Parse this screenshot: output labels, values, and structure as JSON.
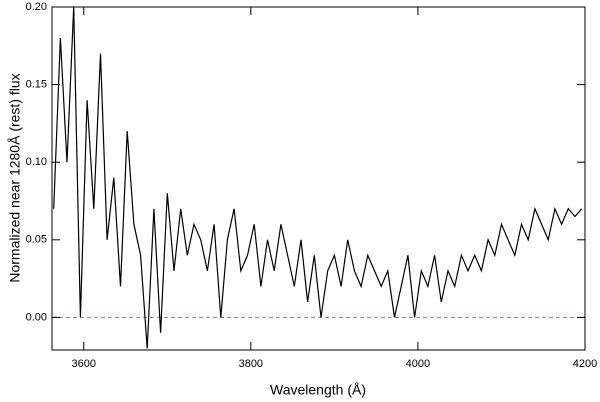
{
  "chart_data": {
    "type": "line",
    "xlabel": "Wavelength (Å)",
    "ylabel": "Normalized near 1280Å (rest) flux",
    "x": [
      3564,
      3572,
      3580,
      3588,
      3596,
      3604,
      3612,
      3620,
      3628,
      3636,
      3644,
      3652,
      3660,
      3668,
      3676,
      3684,
      3692,
      3700,
      3708,
      3716,
      3724,
      3732,
      3740,
      3748,
      3756,
      3764,
      3772,
      3780,
      3788,
      3796,
      3804,
      3812,
      3820,
      3828,
      3836,
      3844,
      3852,
      3860,
      3868,
      3876,
      3884,
      3892,
      3900,
      3908,
      3916,
      3924,
      3932,
      3940,
      3948,
      3956,
      3964,
      3972,
      3980,
      3988,
      3996,
      4004,
      4012,
      4020,
      4028,
      4036,
      4044,
      4052,
      4060,
      4068,
      4076,
      4084,
      4092,
      4100,
      4108,
      4116,
      4124,
      4132,
      4140,
      4148,
      4156,
      4164,
      4172,
      4180,
      4188,
      4196
    ],
    "series": [
      {
        "color": "#000000",
        "values": [
          0.07,
          0.18,
          0.1,
          0.2,
          0.0,
          0.14,
          0.07,
          0.17,
          0.05,
          0.09,
          0.02,
          0.12,
          0.06,
          0.04,
          -0.02,
          0.07,
          -0.01,
          0.08,
          0.03,
          0.07,
          0.04,
          0.06,
          0.05,
          0.03,
          0.06,
          0.0,
          0.05,
          0.07,
          0.03,
          0.04,
          0.06,
          0.02,
          0.05,
          0.03,
          0.06,
          0.04,
          0.02,
          0.05,
          0.01,
          0.04,
          0.0,
          0.03,
          0.04,
          0.02,
          0.05,
          0.03,
          0.02,
          0.04,
          0.03,
          0.02,
          0.03,
          0.0,
          0.02,
          0.04,
          0.0,
          0.03,
          0.02,
          0.04,
          0.01,
          0.03,
          0.02,
          0.04,
          0.03,
          0.04,
          0.03,
          0.05,
          0.04,
          0.06,
          0.05,
          0.04,
          0.06,
          0.05,
          0.07,
          0.06,
          0.05,
          0.07,
          0.06,
          0.07,
          0.065,
          0.07
        ]
      }
    ],
    "reference_line": {
      "y": 0,
      "color": "#e06050"
    },
    "xlim": [
      3562,
      4200
    ],
    "ylim": [
      -0.021,
      0.2
    ],
    "xticks": [
      3600,
      3800,
      4000,
      4200
    ],
    "yticks": [
      {
        "value": 0,
        "label": "0.00"
      },
      {
        "value": 0.05,
        "label": "0.05"
      },
      {
        "value": 0.1,
        "label": "0.10"
      },
      {
        "value": 0.15,
        "label": "0.15"
      },
      {
        "value": 0.2,
        "label": "0.20"
      }
    ]
  }
}
